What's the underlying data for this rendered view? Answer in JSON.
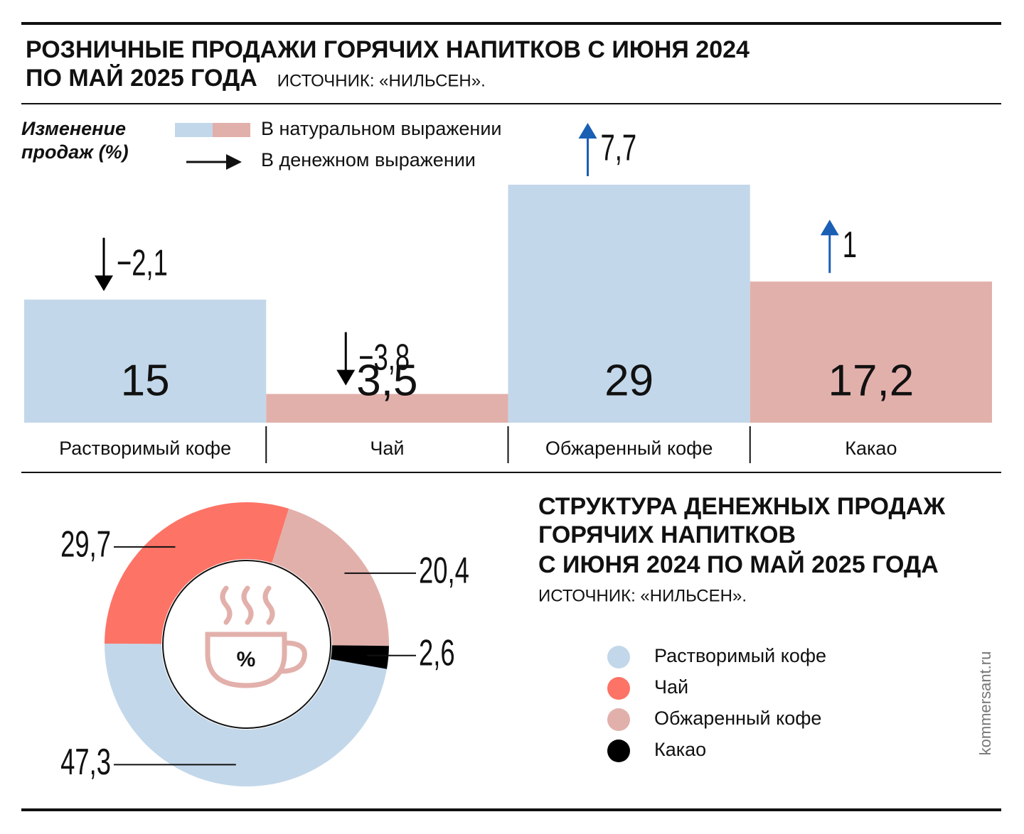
{
  "chart_data": [
    {
      "type": "bar",
      "title": [
        "РОЗНИЧНЫЕ ПРОДАЖИ ГОРЯЧИХ НАПИТКОВ С ИЮНЯ 2024",
        "ПО МАЙ 2025 ГОДА"
      ],
      "subtitle": "ИСТОЧНИК: «НИЛЬСЕН».",
      "y_label": [
        "Изменение",
        "продаж (%)"
      ],
      "categories": [
        "Растворимый кофе",
        "Чай",
        "Обжаренный кофе",
        "Какао"
      ],
      "series": [
        {
          "name": "В натуральном выражении",
          "values": [
            15,
            3.5,
            29,
            17.2
          ],
          "value_labels": [
            "15",
            "3,5",
            "29",
            "17,2"
          ],
          "colors": [
            "#c3d7ea",
            "#e2b0ab",
            "#c3d7ea",
            "#e2b0ab"
          ]
        },
        {
          "name": "В денежном выражении",
          "values": [
            -2.1,
            -3.8,
            7.7,
            1
          ],
          "value_labels": [
            "−2,1",
            "−3,8",
            "7,7",
            "1"
          ],
          "colors": [
            "#000000",
            "#000000",
            "#1a5fb4",
            "#1a5fb4"
          ]
        }
      ]
    },
    {
      "type": "pie",
      "title": [
        "СТРУКТУРА ДЕНЕЖНЫХ ПРОДАЖ",
        "ГОРЯЧИХ НАПИТКОВ",
        "С ИЮНЯ 2024 ПО МАЙ 2025 ГОДА"
      ],
      "subtitle": "ИСТОЧНИК: «НИЛЬСЕН».",
      "icon_label": "%",
      "categories": [
        "Растворимый кофе",
        "Чай",
        "Обжаренный кофе",
        "Какао"
      ],
      "values": [
        47.3,
        29.7,
        20.4,
        2.6
      ],
      "value_labels": [
        "47,3",
        "29,7",
        "20,4",
        "2,6"
      ],
      "colors": [
        "#c3d7ea",
        "#fd7366",
        "#e2b0ab",
        "#000000"
      ]
    }
  ],
  "watermark": "kommersant.ru"
}
